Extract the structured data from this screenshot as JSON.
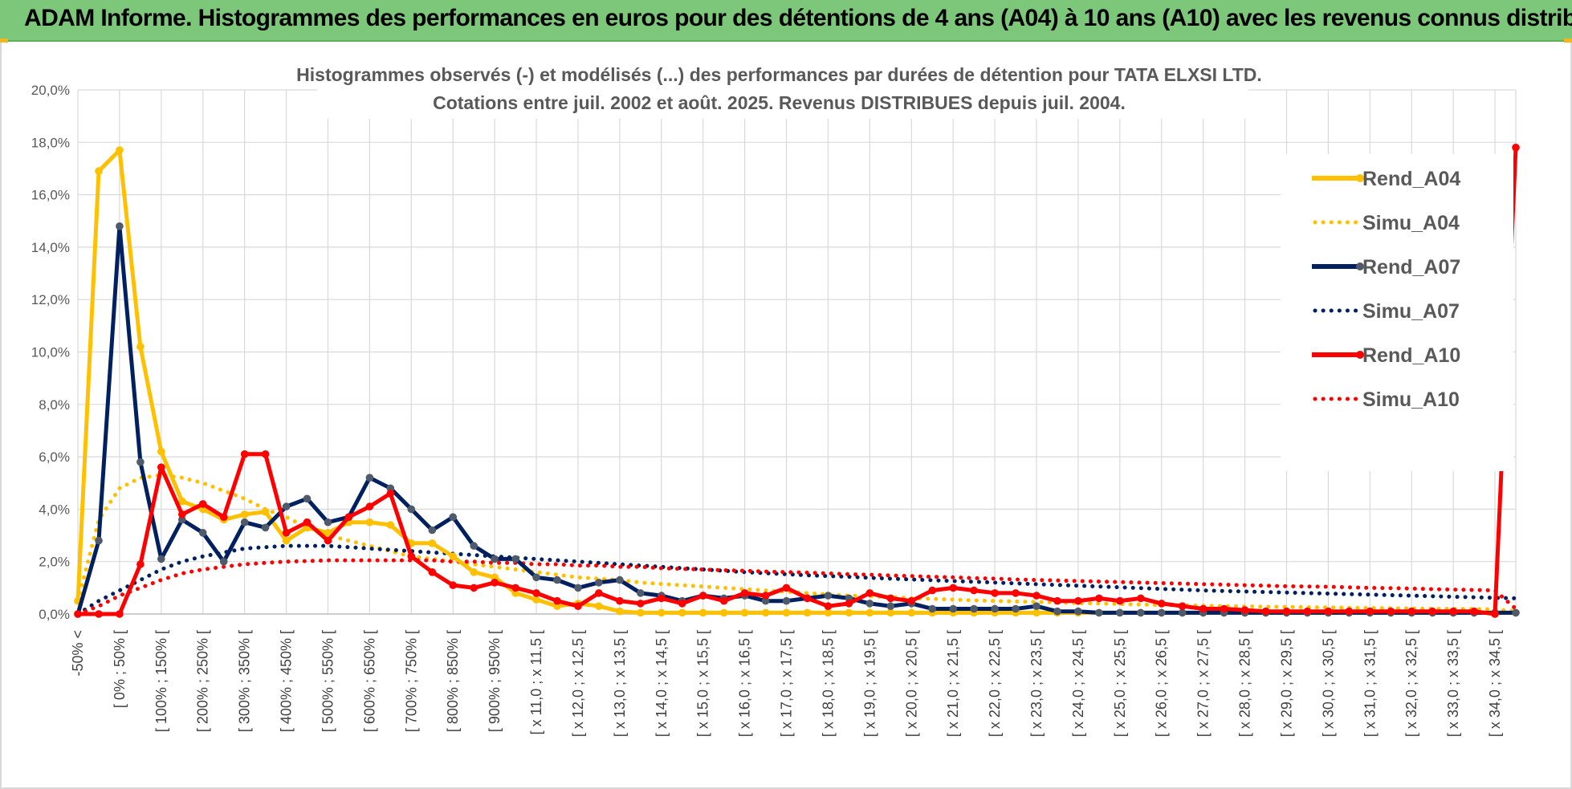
{
  "banner": {
    "title": "ADAM Informe. Histogrammes des performances en euros pour des détentions de 4 ans (A04) à 10 ans (A10) avec les revenus connus distribués"
  },
  "colors": {
    "banner_bg": "#7cc77a",
    "A04": "#ffc000",
    "A07": "#002060",
    "A07_marker": "#4f5b6b",
    "A10": "#ff0000",
    "grid": "#d9d9d9"
  },
  "chart_data": {
    "type": "line",
    "title": [
      "Histogrammes observés (-) et modélisés (...) des performances par durées de détention pour TATA ELXSI LTD.",
      "Cotations entre juil. 2002 et août. 2025. Revenus DISTRIBUES depuis juil. 2004."
    ],
    "xlabel": "",
    "ylabel": "",
    "ylim": [
      0,
      20
    ],
    "y_ticks": [
      "0,0%",
      "2,0%",
      "4,0%",
      "6,0%",
      "8,0%",
      "10,0%",
      "12,0%",
      "14,0%",
      "16,0%",
      "18,0%",
      "20,0%"
    ],
    "grid": true,
    "legend_position": "right",
    "x_tick_labels": [
      "-50% <",
      "[ 0% ; 50% [",
      "[ 100% ; 150% [",
      "[ 200% ; 250% [",
      "[ 300% ; 350% [",
      "[ 400% ; 450% [",
      "[ 500% ; 550% [",
      "[ 600% ; 650% [",
      "[ 700% ; 750% [",
      "[ 800% ; 850% [",
      "[ 900% ; 950% [",
      "[ x 11,0 ; x 11,5 [",
      "[ x 12,0 ; x 12,5 [",
      "[ x 13,0 ; x 13,5 [",
      "[ x 14,0 ; x 14,5 [",
      "[ x 15,0 ; x 15,5 [",
      "[ x 16,0 ; x 16,5 [",
      "[ x 17,0 ; x 17,5 [",
      "[ x 18,0 ; x 18,5 [",
      "[ x 19,0 ; x 19,5 [",
      "[ x 20,0 ; x 20,5 [",
      "[ x 21,0 ; x 21,5 [",
      "[ x 22,0 ; x 22,5 [",
      "[ x 23,0 ; x 23,5 [",
      "[ x 24,0 ; x 24,5 [",
      "[ x 25,0 ; x 25,5 [",
      "[ x 26,0 ; x 26,5 [",
      "[ x 27,0 ; x 27,5 [",
      "[ x 28,0 ; x 28,5 [",
      "[ x 29,0 ; x 29,5 [",
      "[ x 30,0 ; x 30,5 [",
      "[ x 31,0 ; x 31,5 [",
      "[ x 32,0 ; x 32,5 [",
      "[ x 33,0 ; x 33,5 [",
      "[ x 34,0 ; x 34,5 ["
    ],
    "series": [
      {
        "name": "Rend_A04",
        "style": "solid",
        "color": "#ffc000",
        "values": [
          0.5,
          16.9,
          17.7,
          10.2,
          6.2,
          4.3,
          4.0,
          3.6,
          3.8,
          3.9,
          2.8,
          3.3,
          3.1,
          3.5,
          3.5,
          3.4,
          2.7,
          2.7,
          2.2,
          1.6,
          1.4,
          0.8,
          0.55,
          0.3,
          0.4,
          0.3,
          0.1,
          0.05,
          0.05,
          0.05,
          0.05,
          0.05,
          0.05,
          0.05,
          0.05,
          0.05,
          0.05,
          0.05,
          0.05,
          0.05,
          0.05,
          0.05,
          0.05,
          0.05,
          0.05,
          0.05,
          0.05,
          0.05,
          0.05,
          0.05,
          0.05,
          0.05,
          0.05,
          0.05,
          0.05,
          0.05,
          0.05,
          0.05,
          0.05,
          0.05,
          0.05,
          0.05,
          0.05,
          0.05,
          0.05,
          0.05,
          0.05,
          0.05,
          0.05,
          0.05
        ]
      },
      {
        "name": "Simu_A04",
        "style": "dotted",
        "color": "#ffc000",
        "values": [
          0.5,
          3.6,
          4.8,
          5.2,
          5.3,
          5.2,
          5.0,
          4.7,
          4.4,
          4.0,
          3.7,
          3.3,
          3.0,
          2.8,
          2.6,
          2.4,
          2.2,
          2.1,
          2.0,
          1.9,
          1.8,
          1.7,
          1.6,
          1.5,
          1.4,
          1.35,
          1.3,
          1.2,
          1.15,
          1.1,
          1.05,
          1.0,
          0.95,
          0.9,
          0.85,
          0.8,
          0.75,
          0.7,
          0.68,
          0.65,
          0.6,
          0.58,
          0.55,
          0.52,
          0.5,
          0.48,
          0.46,
          0.44,
          0.42,
          0.4,
          0.38,
          0.36,
          0.34,
          0.33,
          0.32,
          0.3,
          0.29,
          0.28,
          0.27,
          0.26,
          0.25,
          0.24,
          0.23,
          0.22,
          0.21,
          0.2,
          0.2,
          0.19,
          0.18,
          0.1
        ]
      },
      {
        "name": "Rend_A07",
        "style": "solid",
        "color": "#002060",
        "values": [
          0.0,
          2.8,
          14.8,
          5.8,
          2.1,
          3.6,
          3.1,
          2.0,
          3.5,
          3.3,
          4.1,
          4.4,
          3.5,
          3.7,
          5.2,
          4.8,
          4.0,
          3.2,
          3.7,
          2.6,
          2.1,
          2.1,
          1.4,
          1.3,
          1.0,
          1.2,
          1.3,
          0.8,
          0.7,
          0.5,
          0.7,
          0.6,
          0.7,
          0.5,
          0.5,
          0.6,
          0.7,
          0.6,
          0.4,
          0.3,
          0.4,
          0.2,
          0.2,
          0.2,
          0.2,
          0.2,
          0.3,
          0.1,
          0.1,
          0.05,
          0.05,
          0.05,
          0.05,
          0.05,
          0.05,
          0.05,
          0.05,
          0.05,
          0.05,
          0.05,
          0.05,
          0.05,
          0.05,
          0.05,
          0.05,
          0.05,
          0.05,
          0.05,
          0.05,
          0.05
        ]
      },
      {
        "name": "Simu_A07",
        "style": "dotted",
        "color": "#002060",
        "values": [
          0.0,
          0.5,
          0.9,
          1.3,
          1.7,
          2.0,
          2.2,
          2.35,
          2.5,
          2.55,
          2.6,
          2.6,
          2.6,
          2.55,
          2.5,
          2.45,
          2.4,
          2.35,
          2.3,
          2.25,
          2.2,
          2.15,
          2.1,
          2.05,
          2.0,
          1.95,
          1.9,
          1.85,
          1.8,
          1.75,
          1.7,
          1.65,
          1.6,
          1.56,
          1.52,
          1.48,
          1.45,
          1.42,
          1.38,
          1.35,
          1.32,
          1.29,
          1.26,
          1.23,
          1.2,
          1.17,
          1.14,
          1.11,
          1.08,
          1.05,
          1.02,
          0.99,
          0.96,
          0.93,
          0.9,
          0.88,
          0.86,
          0.84,
          0.82,
          0.8,
          0.78,
          0.76,
          0.74,
          0.72,
          0.7,
          0.68,
          0.66,
          0.64,
          0.62,
          0.6
        ]
      },
      {
        "name": "Rend_A10",
        "style": "solid",
        "color": "#ff0000",
        "values": [
          0.0,
          0.0,
          0.0,
          1.9,
          5.6,
          3.8,
          4.2,
          3.7,
          6.1,
          6.1,
          3.1,
          3.5,
          2.8,
          3.7,
          4.1,
          4.6,
          2.2,
          1.6,
          1.1,
          1.0,
          1.2,
          1.0,
          0.8,
          0.5,
          0.3,
          0.8,
          0.5,
          0.4,
          0.6,
          0.4,
          0.7,
          0.5,
          0.8,
          0.7,
          1.0,
          0.6,
          0.3,
          0.4,
          0.8,
          0.6,
          0.5,
          0.9,
          1.0,
          0.9,
          0.8,
          0.8,
          0.7,
          0.5,
          0.5,
          0.6,
          0.5,
          0.6,
          0.4,
          0.3,
          0.2,
          0.2,
          0.15,
          0.1,
          0.1,
          0.1,
          0.1,
          0.1,
          0.1,
          0.1,
          0.1,
          0.1,
          0.1,
          0.1,
          0.0,
          17.8
        ]
      },
      {
        "name": "Simu_A10",
        "style": "dotted",
        "color": "#ff0000",
        "values": [
          0.0,
          0.3,
          0.7,
          1.0,
          1.3,
          1.55,
          1.7,
          1.8,
          1.9,
          1.95,
          2.0,
          2.02,
          2.05,
          2.05,
          2.05,
          2.05,
          2.05,
          2.05,
          2.0,
          2.0,
          1.95,
          1.95,
          1.9,
          1.9,
          1.85,
          1.85,
          1.8,
          1.8,
          1.75,
          1.72,
          1.7,
          1.67,
          1.65,
          1.62,
          1.6,
          1.58,
          1.55,
          1.52,
          1.5,
          1.47,
          1.45,
          1.42,
          1.4,
          1.37,
          1.35,
          1.32,
          1.3,
          1.28,
          1.26,
          1.24,
          1.22,
          1.2,
          1.18,
          1.16,
          1.14,
          1.12,
          1.1,
          1.08,
          1.06,
          1.05,
          1.04,
          1.02,
          1.0,
          0.99,
          0.97,
          0.95,
          0.93,
          0.92,
          0.9,
          0.2
        ]
      }
    ]
  }
}
